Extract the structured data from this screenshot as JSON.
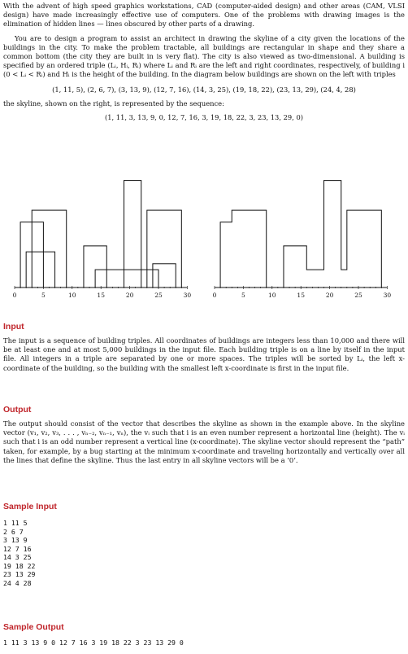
{
  "intro": {
    "p1": "With the advent of high speed graphics workstations, CAD (computer-aided design) and other areas (CAM, VLSI design) have made increasingly effective use of computers. One of the problems with drawing images is the elimination of hidden lines — lines obscured by other parts of a drawing.",
    "p2": "You are to design a program to assist an architect in drawing the skyline of a city given the locations of the buildings in the city. To make the problem tractable, all buildings are rectangular in shape and they share a common bottom (the city they are built in is very flat). The city is also viewed as two-dimensional. A building is specified by an ordered triple (Lᵢ, Hᵢ, Rᵢ) where Lᵢ and Rᵢ are the left and right coordinates, respectively, of building i (0 < Lᵢ < Rᵢ) and Hᵢ is the height of the building. In the diagram below buildings are shown on the left with triples",
    "triples": "(1, 11, 5), (2, 6, 7), (3, 13, 9), (12, 7, 16), (14, 3, 25), (19, 18, 22), (23, 13, 29), (24, 4, 28)",
    "p3": "the skyline, shown on the right, is represented by the sequence:",
    "sequence": "(1, 11, 3, 13, 9, 0, 12, 7, 16, 3, 19, 18, 22, 3, 23, 13, 29, 0)"
  },
  "figures": {
    "left_ticks": [
      "0",
      "5",
      "10",
      "15",
      "20",
      "25",
      "30"
    ],
    "right_ticks": [
      "0",
      "5",
      "10",
      "15",
      "20",
      "25",
      "30"
    ],
    "buildings": [
      [
        1,
        11,
        5
      ],
      [
        2,
        6,
        7
      ],
      [
        3,
        13,
        9
      ],
      [
        12,
        7,
        16
      ],
      [
        14,
        3,
        25
      ],
      [
        19,
        18,
        22
      ],
      [
        23,
        13,
        29
      ],
      [
        24,
        4,
        28
      ]
    ],
    "skyline": [
      1,
      11,
      3,
      13,
      9,
      0,
      12,
      7,
      16,
      3,
      19,
      18,
      22,
      3,
      23,
      13,
      29,
      0
    ]
  },
  "input": {
    "heading": "Input",
    "text": "The input is a sequence of building triples. All coordinates of buildings are integers less than 10,000 and there will be at least one and at most 5,000 buildings in the input file. Each building triple is on a line by itself in the input file. All integers in a triple are separated by one or more spaces. The triples will be sorted by Lᵢ, the left x-coordinate of the building, so the building with the smallest left x-coordinate is first in the input file."
  },
  "output": {
    "heading": "Output",
    "text": "The output should consist of the vector that describes the skyline as shown in the example above. In the skyline vector (v₁, v₂, v₃, . . . , vₙ₋₂, vₙ₋₁, vₙ), the vᵢ such that i is an even number represent a horizontal line (height). The vᵢ such that i is an odd number represent a vertical line (x-coordinate). The skyline vector should represent the “path” taken, for example, by a bug starting at the minimum x-coordinate and traveling horizontally and vertically over all the lines that define the skyline. Thus the last entry in all skyline vectors will be a ‘0’."
  },
  "sample_input": {
    "heading": "Sample Input",
    "lines": [
      "1 11 5",
      "2 6 7",
      "3 13 9",
      "12 7 16",
      "14 3 25",
      "19 18 22",
      "23 13 29",
      "24 4 28"
    ]
  },
  "sample_output": {
    "heading": "Sample Output",
    "line": "1 11 3 13 9 0 12 7 16 3 19 18 22 3 23 13 29 0"
  }
}
